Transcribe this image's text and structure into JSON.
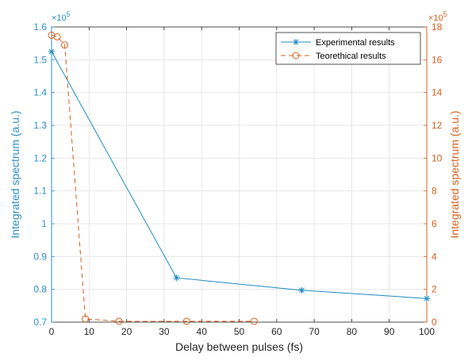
{
  "chart_data": {
    "type": "line",
    "dual_y_axis": true,
    "grid": true,
    "legend_placement": "top-right",
    "xlabel": "Delay between pulses (fs)",
    "xlim": [
      0,
      100
    ],
    "xticks": [
      "0",
      "10",
      "20",
      "30",
      "40",
      "50",
      "60",
      "70",
      "80",
      "90",
      "100"
    ],
    "y_left": {
      "label": "Integrated spectrum (a.u.)",
      "lim": [
        0.7,
        1.6
      ],
      "ticks": [
        "0.7",
        "0.8",
        "0.9",
        "1",
        "1.1",
        "1.2",
        "1.3",
        "1.4",
        "1.5",
        "1.6"
      ],
      "exponent_label": "×10",
      "exponent": "5",
      "color": "#2b8fc7"
    },
    "y_right": {
      "label": "Integrated spectrum (a.u.)",
      "lim": [
        0,
        18
      ],
      "ticks": [
        "0",
        "2",
        "4",
        "6",
        "8",
        "10",
        "12",
        "14",
        "16",
        "18"
      ],
      "exponent_label": "×10",
      "exponent": "5",
      "color": "#d95f1e"
    },
    "series": [
      {
        "name": "Experimental results",
        "axis": "left",
        "color": "#1f8ac0",
        "marker": "asterisk",
        "line_style": "solid",
        "x": [
          0,
          33.3,
          66.7,
          100
        ],
        "y": [
          1.525,
          0.835,
          0.797,
          0.772
        ]
      },
      {
        "name": "Teorethical results",
        "axis": "right",
        "color": "#d95f1e",
        "marker": "circle",
        "line_style": "dashed",
        "x": [
          0,
          1.5,
          3.5,
          9,
          18,
          36,
          54
        ],
        "y": [
          17.5,
          17.4,
          16.9,
          0.2,
          0.05,
          0.05,
          0.05
        ]
      }
    ]
  }
}
